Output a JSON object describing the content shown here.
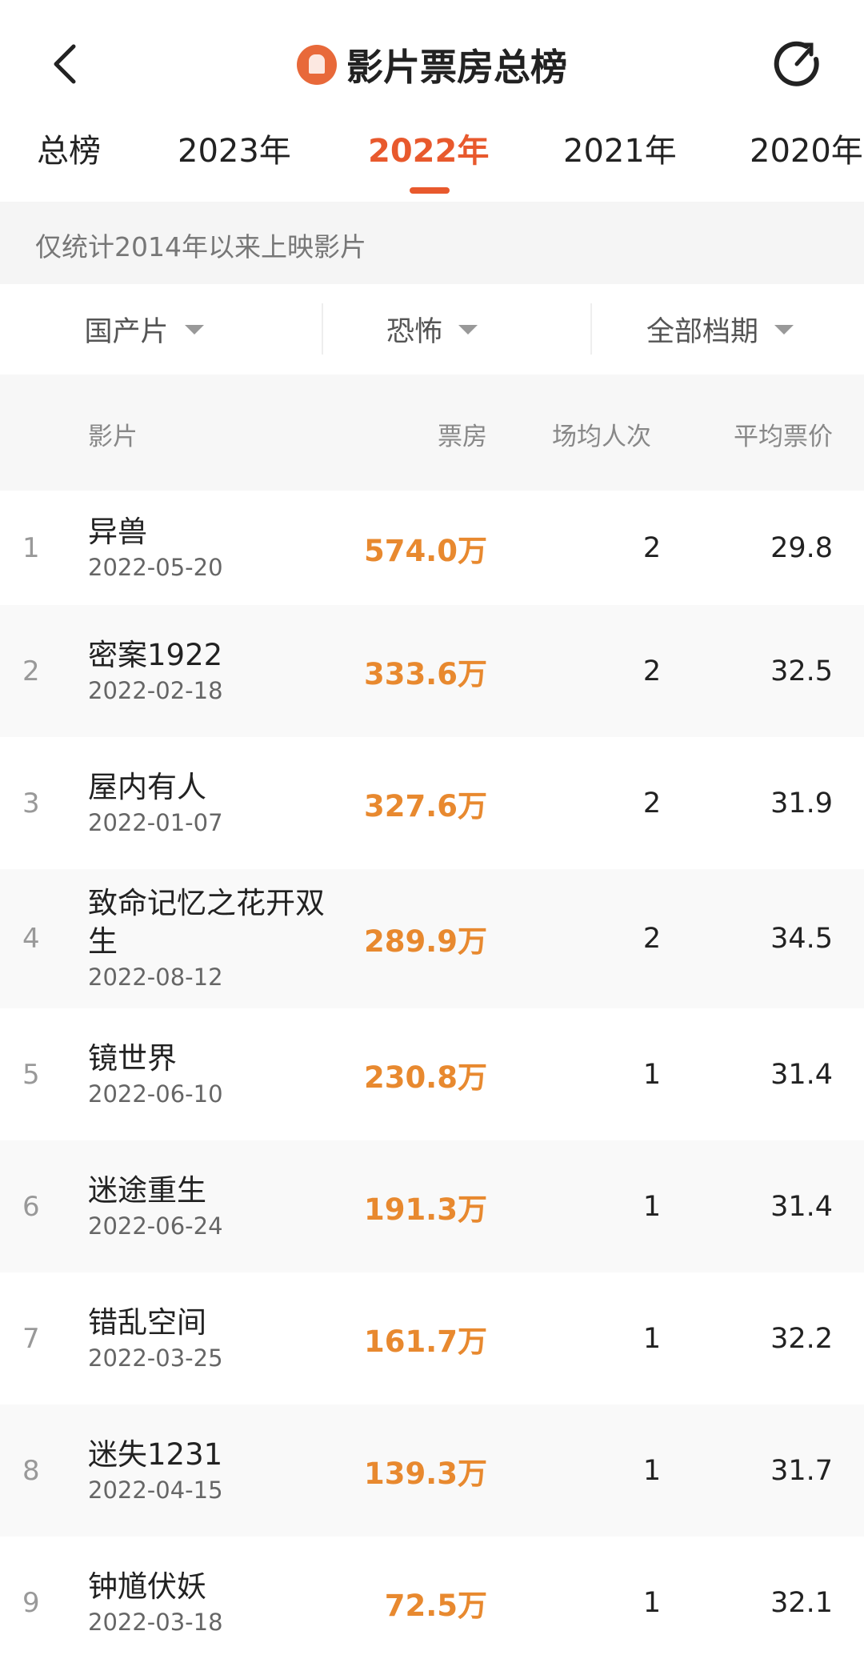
{
  "header": {
    "title": "影片票房总榜",
    "brand_color": "#e8693a"
  },
  "tabs": [
    {
      "label": "总榜"
    },
    {
      "label": "2023年"
    },
    {
      "label": "2022年",
      "active": true
    },
    {
      "label": "2021年"
    },
    {
      "label": "2020年"
    }
  ],
  "notice": "仅统计2014年以来上映影片",
  "filters": [
    {
      "label": "国产片"
    },
    {
      "label": "恐怖"
    },
    {
      "label": "全部档期"
    }
  ],
  "table": {
    "columns": [
      "影片",
      "票房",
      "场均人次",
      "平均票价"
    ],
    "rows": [
      {
        "rank": "1",
        "name": "异兽",
        "date": "2022-05-20",
        "box_office": "574.0万",
        "avg_attendance": "2",
        "avg_price": "29.8"
      },
      {
        "rank": "2",
        "name": "密案1922",
        "date": "2022-02-18",
        "box_office": "333.6万",
        "avg_attendance": "2",
        "avg_price": "32.5"
      },
      {
        "rank": "3",
        "name": "屋内有人",
        "date": "2022-01-07",
        "box_office": "327.6万",
        "avg_attendance": "2",
        "avg_price": "31.9"
      },
      {
        "rank": "4",
        "name": "致命记忆之花开双生",
        "date": "2022-08-12",
        "box_office": "289.9万",
        "avg_attendance": "2",
        "avg_price": "34.5"
      },
      {
        "rank": "5",
        "name": "镜世界",
        "date": "2022-06-10",
        "box_office": "230.8万",
        "avg_attendance": "1",
        "avg_price": "31.4"
      },
      {
        "rank": "6",
        "name": "迷途重生",
        "date": "2022-06-24",
        "box_office": "191.3万",
        "avg_attendance": "1",
        "avg_price": "31.4"
      },
      {
        "rank": "7",
        "name": "错乱空间",
        "date": "2022-03-25",
        "box_office": "161.7万",
        "avg_attendance": "1",
        "avg_price": "32.2"
      },
      {
        "rank": "8",
        "name": "迷失1231",
        "date": "2022-04-15",
        "box_office": "139.3万",
        "avg_attendance": "1",
        "avg_price": "31.7"
      },
      {
        "rank": "9",
        "name": "钟馗伏妖",
        "date": "2022-03-18",
        "box_office": "72.5万",
        "avg_attendance": "1",
        "avg_price": "32.1"
      }
    ]
  },
  "colors": {
    "accent": "#e8592d",
    "box_office": "#e8892f"
  }
}
